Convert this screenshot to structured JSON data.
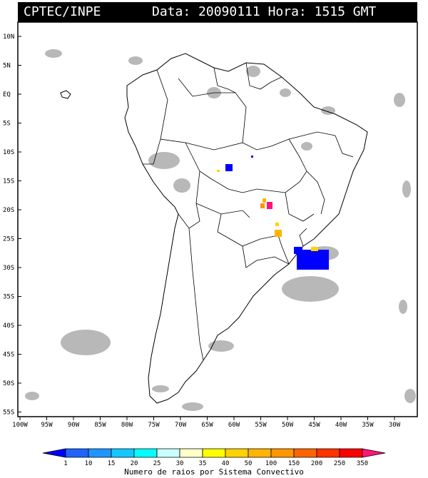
{
  "header": {
    "source": "CPTEC/INPE",
    "data_label": "Data:",
    "date": "20090111",
    "hora_label": "Hora:",
    "time": "1515 GMT"
  },
  "map": {
    "lat_labels": [
      "10N",
      "5N",
      "EQ",
      "5S",
      "10S",
      "15S",
      "20S",
      "25S",
      "30S",
      "35S",
      "40S",
      "45S",
      "50S",
      "55S"
    ],
    "lon_labels": [
      "100W",
      "95W",
      "90W",
      "85W",
      "80W",
      "75W",
      "70W",
      "65W",
      "60W",
      "55W",
      "50W",
      "45W",
      "40W",
      "35W",
      "30W"
    ],
    "land_color": "#ffffff",
    "cloud_color": "#b4b4b4"
  },
  "colorbar": {
    "ticks": [
      "1",
      "10",
      "15",
      "20",
      "25",
      "30",
      "35",
      "40",
      "50",
      "100",
      "150",
      "200",
      "250",
      "350"
    ],
    "colors": [
      "#0000ff",
      "#1e64ff",
      "#1e96ff",
      "#14c8ff",
      "#00ffff",
      "#c8ffff",
      "#ffffc8",
      "#ffff00",
      "#ffd200",
      "#ffb400",
      "#ff9600",
      "#ff6400",
      "#ff3200",
      "#ff0000",
      "#ff1478"
    ],
    "caption": "Numero de raios por Sistema Convectivo"
  }
}
